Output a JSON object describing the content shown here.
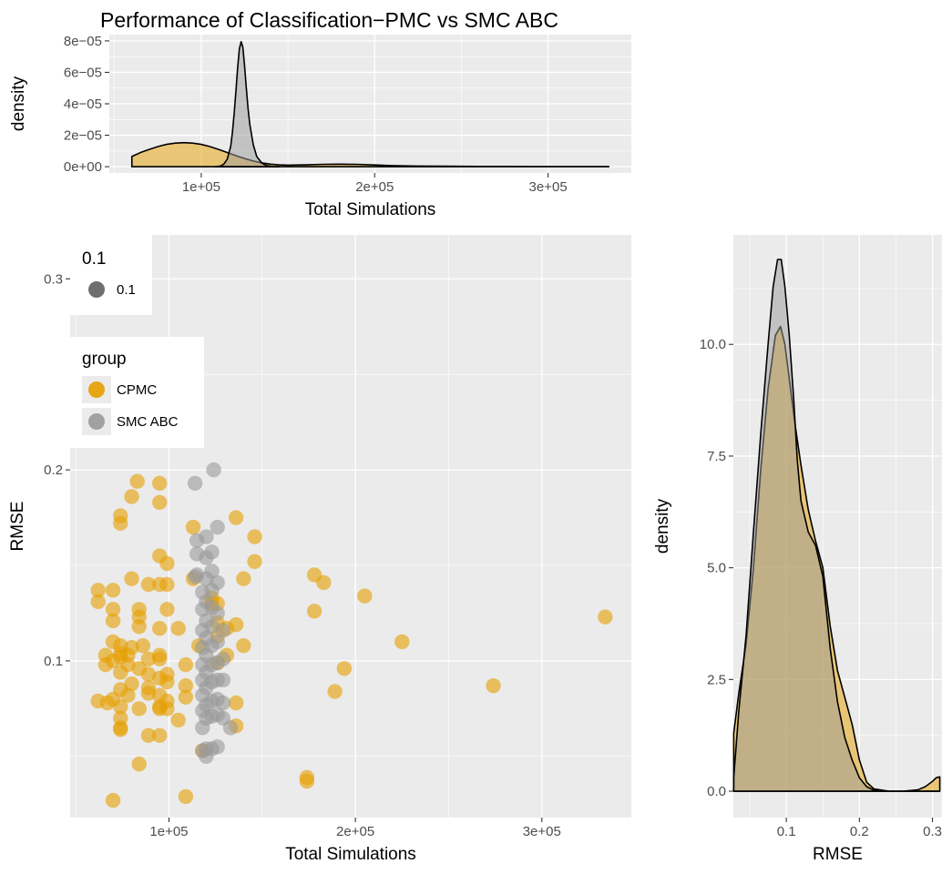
{
  "colors": {
    "CPMC": "#E69F00",
    "SMC ABC": "#999999",
    "panel_bg": "#EBEBEB",
    "grid": "#FFFFFF"
  },
  "chart_data": [
    {
      "type": "area",
      "title": "Performance of Classification−PMC vs SMC ABC",
      "xlabel": "Total Simulations",
      "ylabel": "density",
      "xlim": [
        47000,
        348000
      ],
      "ylim": [
        -4e-06,
        8.4e-05
      ],
      "x_ticks": [
        100000,
        200000,
        300000
      ],
      "x_tick_labels": [
        "1e+05",
        "2e+05",
        "3e+05"
      ],
      "y_ticks": [
        0,
        2e-05,
        4e-05,
        6e-05,
        8e-05
      ],
      "y_tick_labels": [
        "0e+00",
        "2e−05",
        "4e−05",
        "6e−05",
        "8e−05"
      ],
      "grid": true,
      "series": [
        {
          "group": "CPMC",
          "x": [
            60000,
            65000,
            70000,
            75000,
            80000,
            85000,
            90000,
            95000,
            100000,
            105000,
            110000,
            115000,
            120000,
            125000,
            130000,
            135000,
            140000,
            145000,
            150000,
            160000,
            170000,
            180000,
            190000,
            200000,
            210000,
            225000,
            240000,
            260000,
            275000,
            290000,
            310000,
            335000
          ],
          "y": [
            6.5e-06,
            9e-06,
            1.1e-05,
            1.28e-05,
            1.42e-05,
            1.5e-05,
            1.53e-05,
            1.5e-05,
            1.42e-05,
            1.28e-05,
            1.1e-05,
            9e-06,
            7e-06,
            5.2e-06,
            3.6e-06,
            2.4e-06,
            1.6e-06,
            1.2e-06,
            1e-06,
            1.2e-06,
            1.5e-06,
            1.6e-06,
            1.5e-06,
            1.1e-06,
            7e-07,
            4e-07,
            3e-07,
            2e-07,
            2e-07,
            1e-07,
            1e-07,
            1e-07
          ]
        },
        {
          "group": "SMC ABC",
          "x": [
            108000,
            111000,
            113000,
            115000,
            117000,
            118000,
            119000,
            120000,
            121000,
            122000,
            123000,
            124000,
            125000,
            126000,
            127000,
            128000,
            130000,
            132000,
            135000,
            138000,
            141000,
            145000
          ],
          "y": [
            0,
            4e-07,
            1.6e-06,
            4.8e-06,
            1.3e-05,
            2.2e-05,
            3.4e-05,
            4.8e-05,
            6.3e-05,
            7.5e-05,
            7.95e-05,
            7.6e-05,
            6.4e-05,
            5e-05,
            3.7e-05,
            2.7e-05,
            1.4e-05,
            6.5e-06,
            2.2e-06,
            6e-07,
            2e-07,
            0
          ]
        }
      ]
    },
    {
      "type": "scatter",
      "xlabel": "Total Simulations",
      "ylabel": "RMSE",
      "xlim": [
        47000,
        348000
      ],
      "ylim": [
        0.018,
        0.323
      ],
      "x_ticks": [
        100000,
        200000,
        300000
      ],
      "x_tick_labels": [
        "1e+05",
        "2e+05",
        "3e+05"
      ],
      "y_ticks": [
        0.1,
        0.2,
        0.3
      ],
      "y_tick_labels": [
        "0.1",
        "0.2",
        "0.3"
      ],
      "grid": true,
      "legend_size": {
        "title": "0.1",
        "entries": [
          "0.1"
        ]
      },
      "legend_group": {
        "title": "group",
        "entries": [
          "CPMC",
          "SMC ABC"
        ]
      },
      "series": [
        {
          "group": "CPMC",
          "points": [
            [
              62000,
              0.137
            ],
            [
              62000,
              0.131
            ],
            [
              62000,
              0.079
            ],
            [
              66000,
              0.103
            ],
            [
              66000,
              0.098
            ],
            [
              67000,
              0.078
            ],
            [
              70000,
              0.137
            ],
            [
              70000,
              0.127
            ],
            [
              70000,
              0.121
            ],
            [
              70000,
              0.11
            ],
            [
              70000,
              0.1
            ],
            [
              70000,
              0.08
            ],
            [
              70000,
              0.027
            ],
            [
              74000,
              0.176
            ],
            [
              74000,
              0.172
            ],
            [
              74000,
              0.108
            ],
            [
              74000,
              0.104
            ],
            [
              74000,
              0.102
            ],
            [
              74000,
              0.094
            ],
            [
              74000,
              0.085
            ],
            [
              74000,
              0.076
            ],
            [
              74000,
              0.07
            ],
            [
              74000,
              0.065
            ],
            [
              74000,
              0.064
            ],
            [
              78000,
              0.103
            ],
            [
              78000,
              0.098
            ],
            [
              78000,
              0.082
            ],
            [
              80000,
              0.186
            ],
            [
              80000,
              0.143
            ],
            [
              80000,
              0.107
            ],
            [
              80000,
              0.088
            ],
            [
              83000,
              0.194
            ],
            [
              84000,
              0.127
            ],
            [
              84000,
              0.123
            ],
            [
              84000,
              0.118
            ],
            [
              84000,
              0.096
            ],
            [
              84000,
              0.075
            ],
            [
              84000,
              0.046
            ],
            [
              86000,
              0.108
            ],
            [
              89000,
              0.14
            ],
            [
              89000,
              0.101
            ],
            [
              89000,
              0.093
            ],
            [
              89000,
              0.086
            ],
            [
              89000,
              0.083
            ],
            [
              89000,
              0.061
            ],
            [
              95000,
              0.193
            ],
            [
              95000,
              0.183
            ],
            [
              95000,
              0.155
            ],
            [
              95000,
              0.14
            ],
            [
              95000,
              0.117
            ],
            [
              95000,
              0.103
            ],
            [
              95000,
              0.101
            ],
            [
              95000,
              0.091
            ],
            [
              95000,
              0.082
            ],
            [
              95000,
              0.076
            ],
            [
              95000,
              0.075
            ],
            [
              95000,
              0.061
            ],
            [
              99000,
              0.151
            ],
            [
              99000,
              0.14
            ],
            [
              99000,
              0.127
            ],
            [
              99000,
              0.093
            ],
            [
              99000,
              0.089
            ],
            [
              99000,
              0.079
            ],
            [
              99000,
              0.075
            ],
            [
              105000,
              0.117
            ],
            [
              105000,
              0.069
            ],
            [
              109000,
              0.098
            ],
            [
              109000,
              0.087
            ],
            [
              109000,
              0.081
            ],
            [
              109000,
              0.029
            ],
            [
              113000,
              0.17
            ],
            [
              113000,
              0.143
            ],
            [
              116000,
              0.108
            ],
            [
              118000,
              0.053
            ],
            [
              123000,
              0.133
            ],
            [
              123000,
              0.13
            ],
            [
              126000,
              0.13
            ],
            [
              126000,
              0.12
            ],
            [
              126000,
              0.113
            ],
            [
              126000,
              0.099
            ],
            [
              131000,
              0.117
            ],
            [
              131000,
              0.103
            ],
            [
              136000,
              0.175
            ],
            [
              136000,
              0.119
            ],
            [
              136000,
              0.078
            ],
            [
              136000,
              0.066
            ],
            [
              140000,
              0.143
            ],
            [
              140000,
              0.108
            ],
            [
              146000,
              0.165
            ],
            [
              146000,
              0.152
            ],
            [
              174000,
              0.039
            ],
            [
              174000,
              0.037
            ],
            [
              178000,
              0.145
            ],
            [
              178000,
              0.126
            ],
            [
              183000,
              0.141
            ],
            [
              189000,
              0.084
            ],
            [
              194000,
              0.096
            ],
            [
              205000,
              0.134
            ],
            [
              225000,
              0.11
            ],
            [
              274000,
              0.087
            ],
            [
              334000,
              0.123
            ]
          ]
        },
        {
          "group": "SMC ABC",
          "points": [
            [
              114000,
              0.193
            ],
            [
              114000,
              0.144
            ],
            [
              115000,
              0.163
            ],
            [
              115000,
              0.156
            ],
            [
              115000,
              0.145
            ],
            [
              118000,
              0.136
            ],
            [
              118000,
              0.127
            ],
            [
              118000,
              0.116
            ],
            [
              118000,
              0.107
            ],
            [
              118000,
              0.098
            ],
            [
              118000,
              0.09
            ],
            [
              118000,
              0.082
            ],
            [
              118000,
              0.074
            ],
            [
              118000,
              0.065
            ],
            [
              118000,
              0.053
            ],
            [
              120000,
              0.165
            ],
            [
              120000,
              0.154
            ],
            [
              120000,
              0.143
            ],
            [
              120000,
              0.131
            ],
            [
              120000,
              0.121
            ],
            [
              120000,
              0.112
            ],
            [
              120000,
              0.103
            ],
            [
              120000,
              0.094
            ],
            [
              120000,
              0.086
            ],
            [
              120000,
              0.077
            ],
            [
              120000,
              0.07
            ],
            [
              120000,
              0.054
            ],
            [
              120000,
              0.05
            ],
            [
              123000,
              0.157
            ],
            [
              123000,
              0.147
            ],
            [
              123000,
              0.137
            ],
            [
              123000,
              0.128
            ],
            [
              123000,
              0.118
            ],
            [
              123000,
              0.108
            ],
            [
              123000,
              0.098
            ],
            [
              123000,
              0.089
            ],
            [
              123000,
              0.079
            ],
            [
              123000,
              0.071
            ],
            [
              123000,
              0.054
            ],
            [
              124000,
              0.2
            ],
            [
              126000,
              0.17
            ],
            [
              126000,
              0.141
            ],
            [
              126000,
              0.125
            ],
            [
              126000,
              0.11
            ],
            [
              126000,
              0.099
            ],
            [
              126000,
              0.09
            ],
            [
              126000,
              0.08
            ],
            [
              126000,
              0.072
            ],
            [
              126000,
              0.055
            ],
            [
              129000,
              0.116
            ],
            [
              129000,
              0.101
            ],
            [
              129000,
              0.09
            ],
            [
              129000,
              0.078
            ],
            [
              129000,
              0.07
            ],
            [
              133000,
              0.065
            ]
          ]
        }
      ]
    },
    {
      "type": "area",
      "xlabel": "RMSE",
      "ylabel": "density",
      "xlim": [
        0.0275,
        0.313
      ],
      "ylim": [
        -0.59,
        12.45
      ],
      "x_ticks": [
        0.1,
        0.2,
        0.3
      ],
      "x_tick_labels": [
        "0.1",
        "0.2",
        "0.3"
      ],
      "y_ticks": [
        0,
        2.5,
        5,
        7.5,
        10
      ],
      "y_tick_labels": [
        "0.0",
        "2.5",
        "5.0",
        "7.5",
        "10.0"
      ],
      "grid": true,
      "series": [
        {
          "group": "CPMC",
          "x": [
            0.028,
            0.028,
            0.035,
            0.045,
            0.055,
            0.065,
            0.075,
            0.085,
            0.092,
            0.098,
            0.105,
            0.112,
            0.12,
            0.13,
            0.14,
            0.15,
            0.16,
            0.17,
            0.18,
            0.19,
            0.2,
            0.21,
            0.22,
            0.24,
            0.26,
            0.28,
            0.29,
            0.3,
            0.305,
            0.31,
            0.31
          ],
          "y": [
            0,
            1.3,
            2.2,
            3.3,
            5.0,
            7.2,
            9.0,
            10.2,
            10.4,
            10.0,
            9.1,
            8.2,
            7.3,
            6.3,
            5.6,
            5.0,
            3.7,
            2.7,
            2.1,
            1.5,
            0.7,
            0.2,
            0.05,
            0,
            0,
            0.03,
            0.1,
            0.22,
            0.3,
            0.32,
            0
          ]
        },
        {
          "group": "SMC ABC",
          "x": [
            0.028,
            0.028,
            0.035,
            0.045,
            0.055,
            0.065,
            0.075,
            0.082,
            0.088,
            0.093,
            0.098,
            0.104,
            0.11,
            0.115,
            0.12,
            0.13,
            0.14,
            0.15,
            0.16,
            0.17,
            0.18,
            0.19,
            0.2,
            0.21,
            0.22,
            0.24,
            0.26,
            0.28,
            0.31
          ],
          "y": [
            0,
            0.3,
            1.8,
            3.5,
            5.8,
            8.0,
            10.0,
            11.3,
            11.9,
            11.9,
            11.3,
            10.2,
            8.8,
            7.4,
            6.5,
            5.8,
            5.5,
            4.8,
            3.2,
            2.0,
            1.2,
            0.7,
            0.3,
            0.1,
            0.02,
            0,
            0,
            0,
            0
          ]
        }
      ]
    }
  ]
}
